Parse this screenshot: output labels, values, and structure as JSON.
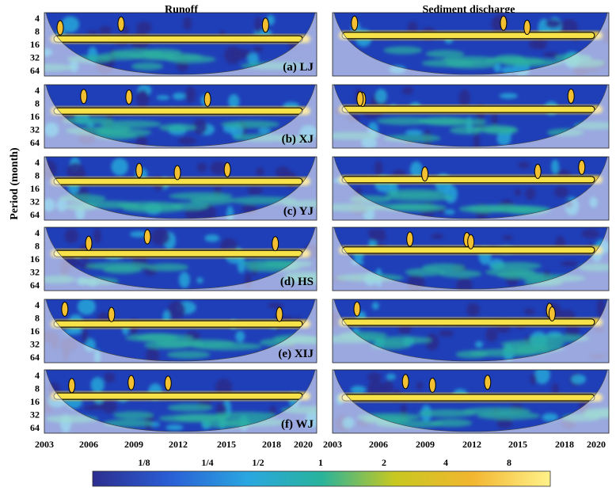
{
  "chart_data": {
    "type": "heatmap",
    "kind": "wavelet power spectrum grid",
    "column_titles": [
      "Runoff",
      "Sediment discharge"
    ],
    "ylabel": "Period (month)",
    "y_ticks": [
      "4",
      "8",
      "16",
      "32",
      "64"
    ],
    "y_scale": "log2",
    "x_ticks": [
      "2003",
      "2006",
      "2009",
      "2012",
      "2015",
      "2018",
      "2020"
    ],
    "panel_labels": [
      "(a) LJ",
      "(b) XJ",
      "(c) YJ",
      "(d) HS",
      "(e) XIJ",
      "(f) WJ"
    ],
    "colorbar": {
      "ticks": [
        "1/8",
        "1/4",
        "1/2",
        "1",
        "2",
        "4",
        "8"
      ],
      "scale": "log2",
      "colors": [
        "#2c2e8f",
        "#2a5fd6",
        "#2aa7e0",
        "#28b39c",
        "#c8c820",
        "#f2b630",
        "#fff28a"
      ]
    },
    "dominant_bands": {
      "runoff": [
        12,
        12,
        11,
        12,
        11,
        12
      ],
      "sediment_discharge": [
        10,
        11,
        10,
        10,
        10,
        13
      ]
    }
  }
}
